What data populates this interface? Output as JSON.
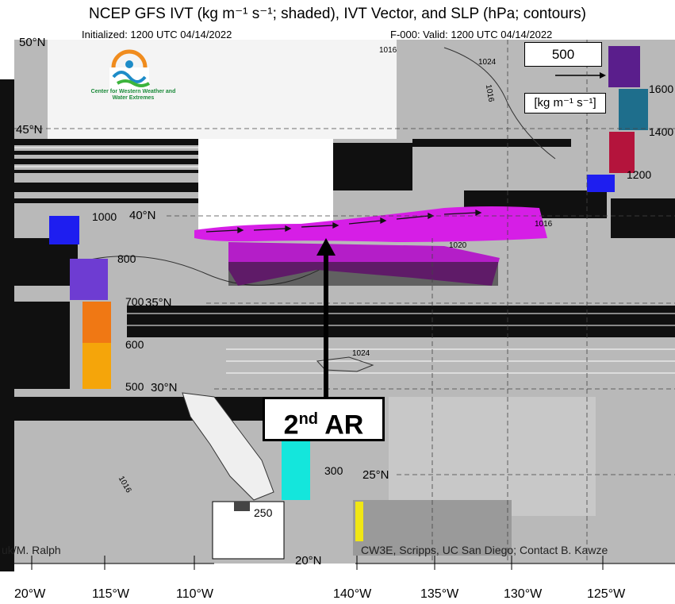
{
  "title": "NCEP GFS IVT (kg m⁻¹ s⁻¹; shaded), IVT Vector, and SLP (hPa; contours)",
  "initialized": "Initialized: 1200 UTC 04/14/2022",
  "valid": "F-000: Valid: 1200 UTC 04/14/2022",
  "logo_text": "Center for Western Weather and Water Extremes",
  "reference_vector": "500",
  "units": "[kg m⁻¹ s⁻¹]",
  "annotation": {
    "main": "2",
    "sup": "nd",
    "rest": " AR"
  },
  "lat_labels": [
    "50°N",
    "45°N",
    "40°N",
    "35°N",
    "30°N",
    "25°N",
    "20°N"
  ],
  "lon_labels": [
    "20°W",
    "115°W",
    "110°W",
    "140°W",
    "135°W",
    "130°W",
    "125°W"
  ],
  "colorbar_labels": [
    "1600",
    "1400",
    "1200",
    "1000",
    "800",
    "700",
    "600",
    "500",
    "300",
    "250"
  ],
  "slp_contour_labels": [
    "1016",
    "1024",
    "1016",
    "1016",
    "1020",
    "1024",
    "1016"
  ],
  "credit_left": "uk/M. Ralph",
  "credit_right": "CW3E, Scripps, UC San Diego; Contact B. Kawze",
  "colors": {
    "ar_magenta": "#d61ee6",
    "ocean_gray": "#b4b4b4",
    "land_light": "#eeeeee",
    "cbar_purple": "#5a1e8c",
    "cbar_teal": "#1e6e8c",
    "cbar_red": "#b4143c",
    "cbar_blue": "#1e1ef0",
    "cbar_violet": "#6e3cd2",
    "cbar_orange": "#f07814",
    "cbar_amber": "#f5a50a",
    "cbar_cyan": "#14e6dc",
    "cbar_yellow": "#f0e614"
  }
}
